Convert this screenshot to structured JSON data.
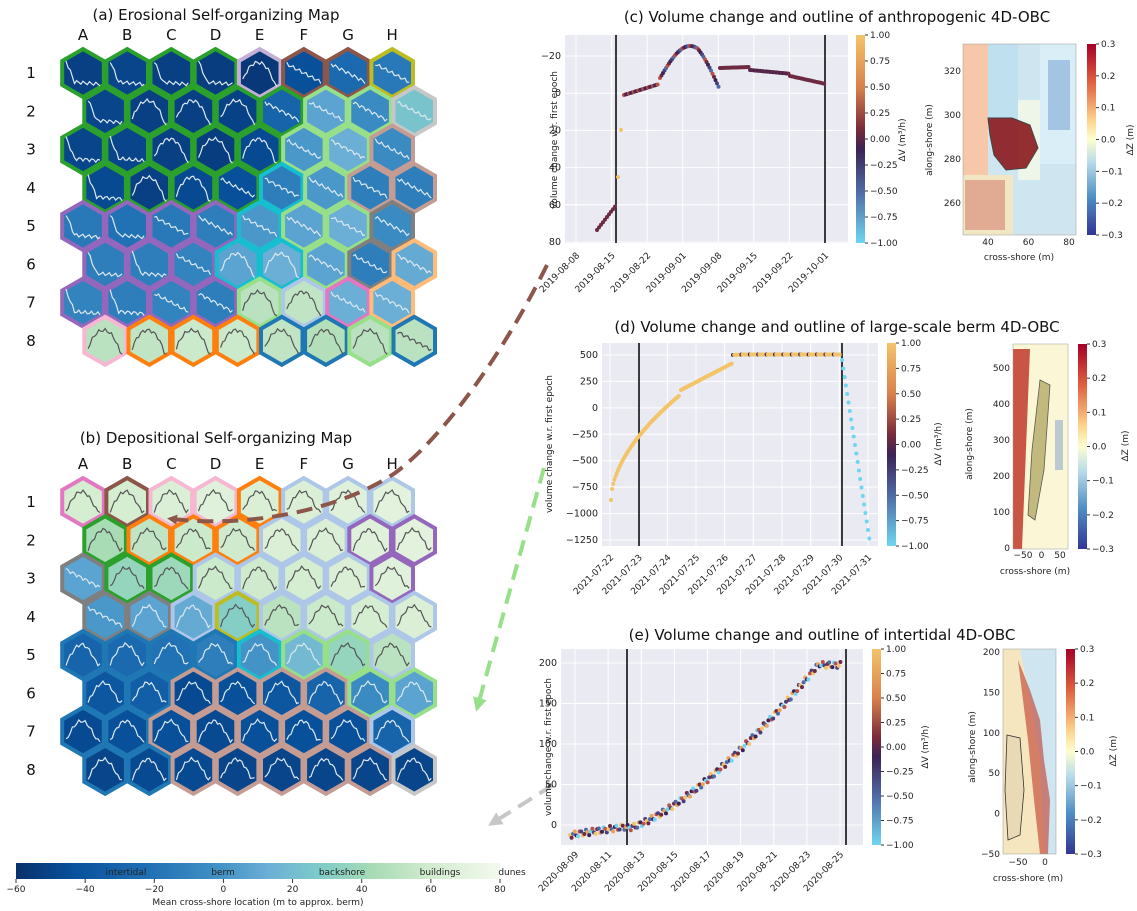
{
  "som_a": {
    "title": "(a) Erosional Self-organizing Map"
  },
  "som_b": {
    "title": "(b) Depositional Self-organizing Map"
  },
  "columns": [
    "A",
    "B",
    "C",
    "D",
    "E",
    "F",
    "G",
    "H"
  ],
  "rows": [
    "1",
    "2",
    "3",
    "4",
    "5",
    "6",
    "7",
    "8"
  ],
  "colorbar": {
    "classes": [
      "intertidal",
      "berm",
      "backshore",
      "buildings",
      "dunes"
    ],
    "ticks": [
      "−60",
      "−40",
      "−20",
      "0",
      "20",
      "40",
      "60",
      "80"
    ],
    "label": "Mean cross-shore location (m to approx. berm)",
    "stops": [
      "#08306b",
      "#08519c",
      "#2171b5",
      "#4292c6",
      "#6baed6",
      "#7ccaca",
      "#a8dcb5",
      "#d4ecd0",
      "#f3f9ee"
    ]
  },
  "border_colors": {
    "green": "#2ca02c",
    "light_green": "#98df8a",
    "purple": "#9467bd",
    "brown": "#8c564b",
    "pink": "#e377c2",
    "light_pink": "#f7b6d2",
    "orange": "#ff7f0e",
    "light_orange": "#ffbb78",
    "blue": "#1f77b4",
    "light_blue": "#aec7e8",
    "cyan": "#17becf",
    "gray": "#7f7f7f",
    "light_gray": "#c7c7c7",
    "rose": "#c49c94",
    "olive": "#bcbd22",
    "lavender": "#c5b0d5"
  },
  "panel_c": {
    "title": "(c) Volume change and outline of anthropogenic 4D-OBC",
    "ylabel": "volume change w.r. first epoch",
    "yticks": [
      "−20",
      "0",
      "20",
      "40",
      "60",
      "80"
    ],
    "xticks": [
      "2019-08-08",
      "2019-08-15",
      "2019-08-22",
      "2019-09-01",
      "2019-09-08",
      "2019-09-15",
      "2019-09-22",
      "2019-10-01"
    ],
    "cb_ticks": [
      "1.00",
      "0.75",
      "0.50",
      "0.25",
      "0.00",
      "−0.25",
      "−0.50",
      "−0.75",
      "−1.00"
    ],
    "cb_label": "ΔV (m³/h)",
    "map_yticks": [
      "320",
      "300",
      "280",
      "260"
    ],
    "map_xticks": [
      "40",
      "60",
      "80"
    ],
    "map_ylabel": "along-shore (m)",
    "map_xlabel": "cross-shore (m)",
    "dz_ticks": [
      "0.3",
      "0.2",
      "0.1",
      "0.0",
      "−0.1",
      "−0.2",
      "−0.3"
    ],
    "dz_label": "ΔZ (m)"
  },
  "panel_d": {
    "title": "(d) Volume change and outline of large-scale berm 4D-OBC",
    "ylabel": "volume change w.r. first epoch",
    "yticks": [
      "500",
      "250",
      "0",
      "−250",
      "−500",
      "−750",
      "−1000",
      "−1250"
    ],
    "xticks": [
      "2021-07-22",
      "2021-07-23",
      "2021-07-24",
      "2021-07-25",
      "2021-07-26",
      "2021-07-27",
      "2021-07-28",
      "2021-07-29",
      "2021-07-30",
      "2021-07-31"
    ],
    "cb_ticks": [
      "1.00",
      "0.75",
      "0.50",
      "0.25",
      "0.00",
      "−0.25",
      "−0.50",
      "−0.75",
      "−1.00"
    ],
    "cb_label": "ΔV (m³/h)",
    "map_yticks": [
      "500",
      "400",
      "300",
      "200",
      "100",
      "0"
    ],
    "map_xticks": [
      "−50",
      "0",
      "50"
    ],
    "map_ylabel": "along-shore (m)",
    "map_xlabel": "cross-shore (m)",
    "dz_ticks": [
      "0.3",
      "0.2",
      "0.1",
      "0.0",
      "−0.1",
      "−0.2",
      "−0.3"
    ],
    "dz_label": "ΔZ (m)"
  },
  "panel_e": {
    "title": "(e) Volume change and outline of intertidal 4D-OBC",
    "ylabel": "volume change w.r. first epoch",
    "yticks": [
      "200",
      "150",
      "100",
      "50",
      "0"
    ],
    "xticks": [
      "2020-08-09",
      "2020-08-11",
      "2020-08-13",
      "2020-08-15",
      "2020-08-17",
      "2020-08-19",
      "2020-08-21",
      "2020-08-23",
      "2020-08-25"
    ],
    "cb_ticks": [
      "1.00",
      "0.75",
      "0.50",
      "0.25",
      "0.00",
      "−0.25",
      "−0.50",
      "−0.75",
      "−1.00"
    ],
    "cb_label": "ΔV (m³/h)",
    "map_yticks": [
      "200",
      "150",
      "100",
      "50",
      "0",
      "−50"
    ],
    "map_xticks": [
      "−50",
      "0"
    ],
    "map_ylabel": "along-shore (m)",
    "map_xlabel": "cross-shore (m)",
    "dz_ticks": [
      "0.3",
      "0.2",
      "0.1",
      "0.0",
      "−0.1",
      "−0.2",
      "−0.3"
    ],
    "dz_label": "ΔZ (m)"
  }
}
